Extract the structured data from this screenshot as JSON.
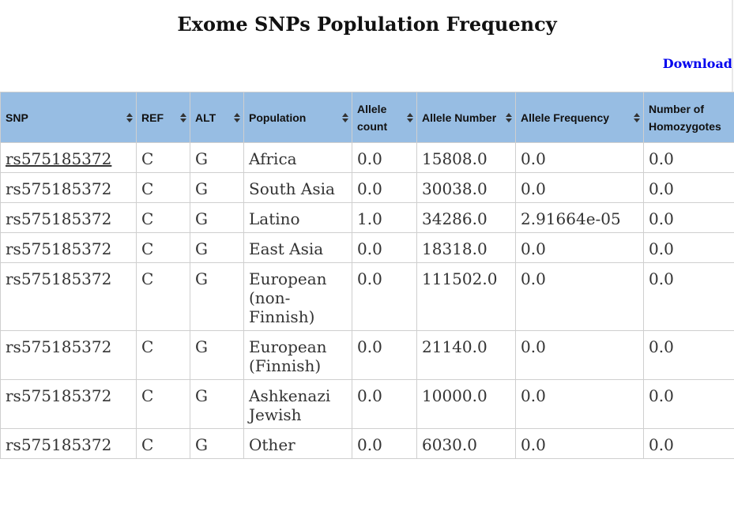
{
  "page": {
    "title": "Exome SNPs Poplulation Frequency",
    "download_label": "Download"
  },
  "colors": {
    "header_bg": "#97bde3",
    "link": "#0000ee",
    "border": "#cfcfcf"
  },
  "table": {
    "columns": [
      {
        "label": "SNP",
        "icon": "sort-icon"
      },
      {
        "label": "REF",
        "icon": "sort-icon"
      },
      {
        "label": "ALT",
        "icon": "sort-icon"
      },
      {
        "label": "Population",
        "icon": "sort-icon"
      },
      {
        "label": "Allele count",
        "icon": "sort-icon"
      },
      {
        "label": "Allele Number",
        "icon": "sort-icon"
      },
      {
        "label": "Allele Frequency",
        "icon": "sort-icon"
      },
      {
        "label": "Number of Homozygotes",
        "icon": "sort-icon"
      }
    ],
    "rows": [
      [
        "rs575185372",
        "C",
        "G",
        "Africa",
        "0.0",
        "15808.0",
        "0.0",
        "0.0"
      ],
      [
        "rs575185372",
        "C",
        "G",
        "South Asia",
        "0.0",
        "30038.0",
        "0.0",
        "0.0"
      ],
      [
        "rs575185372",
        "C",
        "G",
        "Latino",
        "1.0",
        "34286.0",
        "2.91664e-05",
        "0.0"
      ],
      [
        "rs575185372",
        "C",
        "G",
        "East Asia",
        "0.0",
        "18318.0",
        "0.0",
        "0.0"
      ],
      [
        "rs575185372",
        "C",
        "G",
        "European (non-Finnish)",
        "0.0",
        "111502.0",
        "0.0",
        "0.0"
      ],
      [
        "rs575185372",
        "C",
        "G",
        "European (Finnish)",
        "0.0",
        "21140.0",
        "0.0",
        "0.0"
      ],
      [
        "rs575185372",
        "C",
        "G",
        "Ashkenazi Jewish",
        "0.0",
        "10000.0",
        "0.0",
        "0.0"
      ],
      [
        "rs575185372",
        "C",
        "G",
        "Other",
        "0.0",
        "6030.0",
        "0.0",
        "0.0"
      ]
    ]
  }
}
